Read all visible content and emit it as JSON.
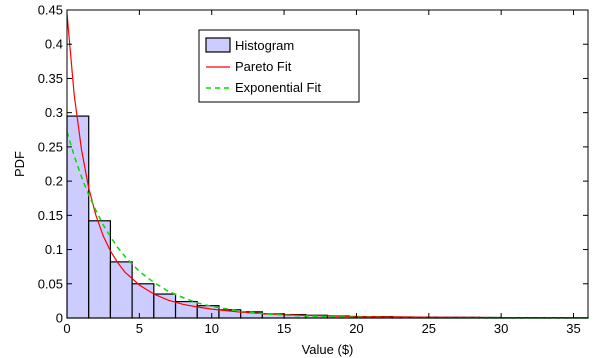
{
  "chart_data": {
    "type": "bar",
    "xlabel": "Value ($)",
    "ylabel": "PDF",
    "xlim": [
      0,
      36
    ],
    "ylim": [
      0,
      0.45
    ],
    "xticks": [
      0,
      5,
      10,
      15,
      20,
      25,
      30,
      35
    ],
    "yticks": [
      0,
      0.05,
      0.1,
      0.15,
      0.2,
      0.25,
      0.3,
      0.35,
      0.4,
      0.45
    ],
    "grid": false,
    "legend": {
      "placement": "top-center",
      "entries": [
        "Histogram",
        "Pareto Fit",
        "Exponential Fit"
      ]
    },
    "histogram": {
      "name": "Histogram",
      "bin_edges": [
        0,
        1.5,
        3,
        4.5,
        6,
        7.5,
        9,
        10.5,
        12,
        13.5,
        15,
        16.5,
        18,
        19.5,
        21,
        22.5,
        24,
        25.5,
        27,
        28.5,
        30,
        31.5,
        33,
        34.5,
        36
      ],
      "values": [
        0.295,
        0.142,
        0.082,
        0.05,
        0.035,
        0.024,
        0.018,
        0.012,
        0.009,
        0.006,
        0.005,
        0.004,
        0.003,
        0.002,
        0.002,
        0.0015,
        0.0012,
        0.001,
        0.001,
        0.0008,
        0.0006,
        0.0005,
        0.0004,
        0.0003
      ],
      "fill": "#ccccff",
      "edge": "#000000"
    },
    "series": [
      {
        "name": "Pareto Fit",
        "style": "solid",
        "color": "#ff0000",
        "x": [
          0,
          0.5,
          1,
          1.5,
          2,
          2.5,
          3,
          3.5,
          4,
          5,
          6,
          7,
          8,
          9,
          10,
          12,
          14,
          16,
          18,
          20,
          22,
          24,
          26,
          28,
          30,
          32,
          34,
          36
        ],
        "y": [
          0.445,
          0.326,
          0.246,
          0.19,
          0.15,
          0.12,
          0.098,
          0.081,
          0.067,
          0.048,
          0.035,
          0.026,
          0.02,
          0.016,
          0.013,
          0.0085,
          0.0058,
          0.0041,
          0.003,
          0.0022,
          0.0017,
          0.0013,
          0.001,
          0.0008,
          0.0006,
          0.0005,
          0.0004,
          0.0003
        ]
      },
      {
        "name": "Exponential Fit",
        "style": "dashed",
        "color": "#00dd00",
        "x": [
          0,
          0.5,
          1,
          1.5,
          2,
          2.5,
          3,
          3.5,
          4,
          5,
          6,
          7,
          8,
          9,
          10,
          12,
          14,
          16,
          18,
          20,
          22,
          24,
          26,
          28,
          30,
          32,
          34,
          36
        ],
        "y": [
          0.272,
          0.237,
          0.206,
          0.18,
          0.157,
          0.136,
          0.119,
          0.103,
          0.09,
          0.068,
          0.052,
          0.039,
          0.03,
          0.022,
          0.017,
          0.0098,
          0.0056,
          0.0032,
          0.0019,
          0.0011,
          0.0006,
          0.00035,
          0.0002,
          0.0001,
          7e-05,
          4e-05,
          2e-05,
          1e-05
        ]
      }
    ]
  }
}
